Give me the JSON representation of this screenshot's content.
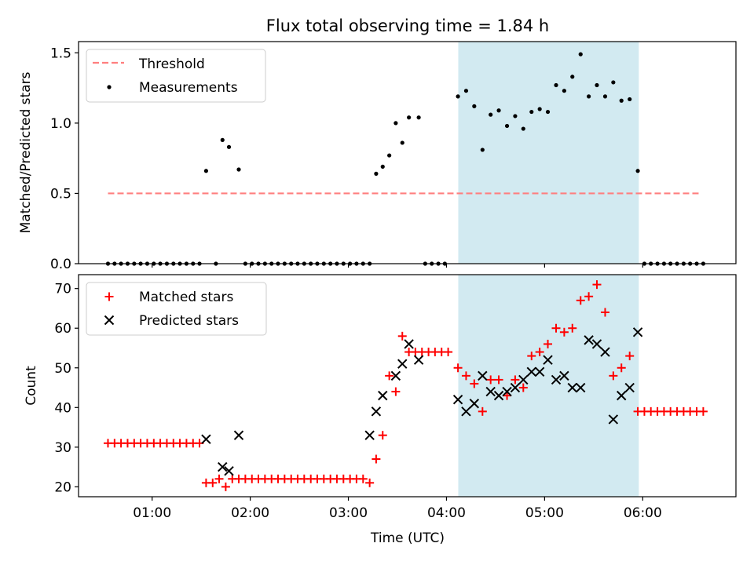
{
  "title": "Flux total observing time = 1.84 h",
  "colors": {
    "threshold": "#ff7f7f",
    "measurement": "#000000",
    "matched": "#ff0000",
    "predicted": "#000000",
    "shade": "#add8e6"
  },
  "chart_data": [
    {
      "type": "scatter",
      "ylabel": "Matched/Predicted stars",
      "ylim": [
        0,
        1.58
      ],
      "yticks": [
        0.0,
        0.5,
        1.0,
        1.5
      ],
      "ytick_labels": [
        "0.0",
        "0.5",
        "1.0",
        "1.5"
      ],
      "xlim": [
        0.25,
        6.95
      ],
      "legend_position": "top-left",
      "shaded_x": [
        4.12,
        5.96
      ],
      "threshold": {
        "name": "Threshold",
        "x": [
          0.55,
          6.6
        ],
        "y": [
          0.5,
          0.5
        ]
      },
      "series": [
        {
          "name": "Measurements",
          "marker": "dot",
          "x": [
            0.55,
            0.617,
            0.683,
            0.75,
            0.817,
            0.883,
            0.95,
            1.017,
            1.083,
            1.15,
            1.217,
            1.283,
            1.35,
            1.417,
            1.483,
            1.55,
            1.65,
            1.717,
            1.783,
            1.883,
            1.95,
            2.017,
            2.083,
            2.15,
            2.217,
            2.283,
            2.35,
            2.417,
            2.483,
            2.55,
            2.617,
            2.683,
            2.75,
            2.817,
            2.883,
            2.95,
            3.017,
            3.083,
            3.15,
            3.217,
            3.283,
            3.35,
            3.417,
            3.483,
            3.55,
            3.617,
            3.717,
            3.783,
            3.85,
            3.917,
            3.983,
            4.117,
            4.2,
            4.283,
            4.367,
            4.45,
            4.533,
            4.617,
            4.7,
            4.783,
            4.867,
            4.95,
            5.033,
            5.117,
            5.2,
            5.283,
            5.367,
            5.45,
            5.533,
            5.617,
            5.7,
            5.783,
            5.867,
            5.95,
            6.017,
            6.083,
            6.15,
            6.217,
            6.283,
            6.35,
            6.417,
            6.483,
            6.55,
            6.617
          ],
          "y": [
            0,
            0,
            0,
            0,
            0,
            0,
            0,
            0,
            0,
            0,
            0,
            0,
            0,
            0,
            0,
            0.66,
            0,
            0.88,
            0.83,
            0.67,
            0,
            0,
            0,
            0,
            0,
            0,
            0,
            0,
            0,
            0,
            0,
            0,
            0,
            0,
            0,
            0,
            0,
            0,
            0,
            0,
            0.64,
            0.69,
            0.77,
            1.0,
            0.86,
            1.04,
            1.04,
            0,
            0,
            0,
            0,
            1.19,
            1.23,
            1.12,
            0.81,
            1.06,
            1.09,
            0.98,
            1.05,
            0.96,
            1.08,
            1.1,
            1.08,
            1.27,
            1.23,
            1.33,
            1.49,
            1.19,
            1.27,
            1.19,
            1.29,
            1.16,
            1.17,
            0.66,
            0,
            0,
            0,
            0,
            0,
            0,
            0,
            0,
            0,
            0
          ]
        }
      ]
    },
    {
      "type": "scatter",
      "ylabel": "Count",
      "xlabel": "Time (UTC)",
      "ylim": [
        17.5,
        73.5
      ],
      "yticks": [
        20,
        30,
        40,
        50,
        60,
        70
      ],
      "ytick_labels": [
        "20",
        "30",
        "40",
        "50",
        "60",
        "70"
      ],
      "xlim": [
        0.25,
        6.95
      ],
      "xticks": [
        1,
        2,
        3,
        4,
        5,
        6
      ],
      "xtick_labels": [
        "01:00",
        "02:00",
        "03:00",
        "04:00",
        "05:00",
        "06:00"
      ],
      "legend_position": "top-left",
      "shaded_x": [
        4.12,
        5.96
      ],
      "series": [
        {
          "name": "Matched stars",
          "marker": "plus",
          "x": [
            0.55,
            0.617,
            0.683,
            0.75,
            0.817,
            0.883,
            0.95,
            1.017,
            1.083,
            1.15,
            1.217,
            1.283,
            1.35,
            1.417,
            1.483,
            1.55,
            1.617,
            1.683,
            1.75,
            1.817,
            1.883,
            1.95,
            2.017,
            2.083,
            2.15,
            2.217,
            2.283,
            2.35,
            2.417,
            2.483,
            2.55,
            2.617,
            2.683,
            2.75,
            2.817,
            2.883,
            2.95,
            3.017,
            3.083,
            3.15,
            3.217,
            3.283,
            3.35,
            3.417,
            3.483,
            3.55,
            3.617,
            3.683,
            3.75,
            3.817,
            3.883,
            3.95,
            4.017,
            4.117,
            4.2,
            4.283,
            4.367,
            4.45,
            4.533,
            4.617,
            4.7,
            4.783,
            4.867,
            4.95,
            5.033,
            5.117,
            5.2,
            5.283,
            5.367,
            5.45,
            5.533,
            5.617,
            5.7,
            5.783,
            5.867,
            5.95,
            6.017,
            6.083,
            6.15,
            6.217,
            6.283,
            6.35,
            6.417,
            6.483,
            6.55,
            6.617
          ],
          "y": [
            31,
            31,
            31,
            31,
            31,
            31,
            31,
            31,
            31,
            31,
            31,
            31,
            31,
            31,
            31,
            21,
            21,
            22,
            20,
            22,
            22,
            22,
            22,
            22,
            22,
            22,
            22,
            22,
            22,
            22,
            22,
            22,
            22,
            22,
            22,
            22,
            22,
            22,
            22,
            22,
            21,
            27,
            33,
            48,
            44,
            58,
            54,
            54,
            54,
            54,
            54,
            54,
            54,
            50,
            48,
            46,
            39,
            47,
            47,
            43,
            47,
            45,
            53,
            54,
            56,
            60,
            59,
            60,
            67,
            68,
            71,
            64,
            48,
            50,
            53,
            39,
            39,
            39,
            39,
            39,
            39,
            39,
            39,
            39,
            39,
            39
          ]
        },
        {
          "name": "Predicted stars",
          "marker": "x",
          "x": [
            1.55,
            1.717,
            1.783,
            1.883,
            3.217,
            3.283,
            3.35,
            3.483,
            3.55,
            3.617,
            3.717,
            4.117,
            4.2,
            4.283,
            4.367,
            4.45,
            4.533,
            4.617,
            4.7,
            4.783,
            4.867,
            4.95,
            5.033,
            5.117,
            5.2,
            5.283,
            5.367,
            5.45,
            5.533,
            5.617,
            5.7,
            5.783,
            5.867,
            5.95
          ],
          "y": [
            32,
            25,
            24,
            33,
            33,
            39,
            43,
            48,
            51,
            56,
            52,
            42,
            39,
            41,
            48,
            44,
            43,
            44,
            45,
            47,
            49,
            49,
            52,
            47,
            48,
            45,
            45,
            57,
            56,
            54,
            37,
            43,
            45,
            59
          ]
        }
      ]
    }
  ]
}
